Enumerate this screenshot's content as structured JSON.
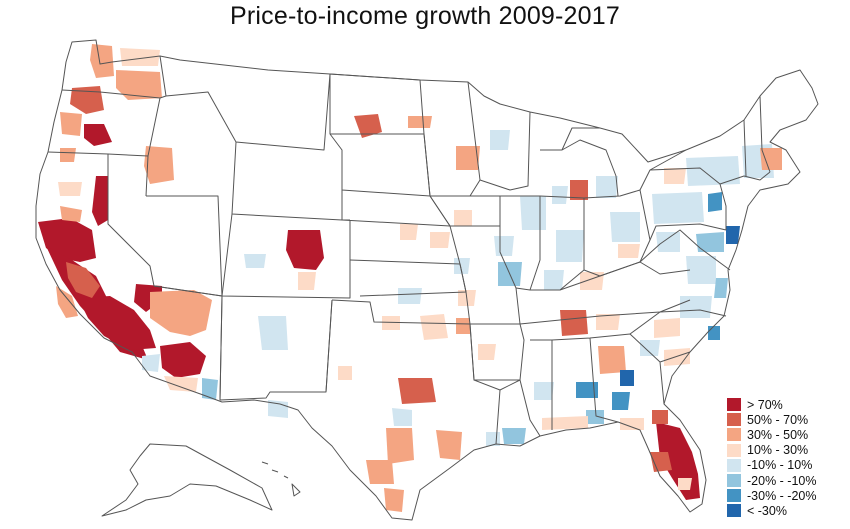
{
  "title": "Price-to-income growth 2009-2017",
  "legend": [
    {
      "label": "> 70%",
      "color": "#b2182b"
    },
    {
      "label": "50% - 70%",
      "color": "#d6604d"
    },
    {
      "label": "30% - 50%",
      "color": "#f4a582"
    },
    {
      "label": "10% - 30%",
      "color": "#fddbc7"
    },
    {
      "label": "-10% - 10%",
      "color": "#d1e5f0"
    },
    {
      "label": "-20% - -10%",
      "color": "#92c5de"
    },
    {
      "label": "-30% - -20%",
      "color": "#4393c3"
    },
    {
      "label": "< -30%",
      "color": "#2166ac"
    }
  ]
}
